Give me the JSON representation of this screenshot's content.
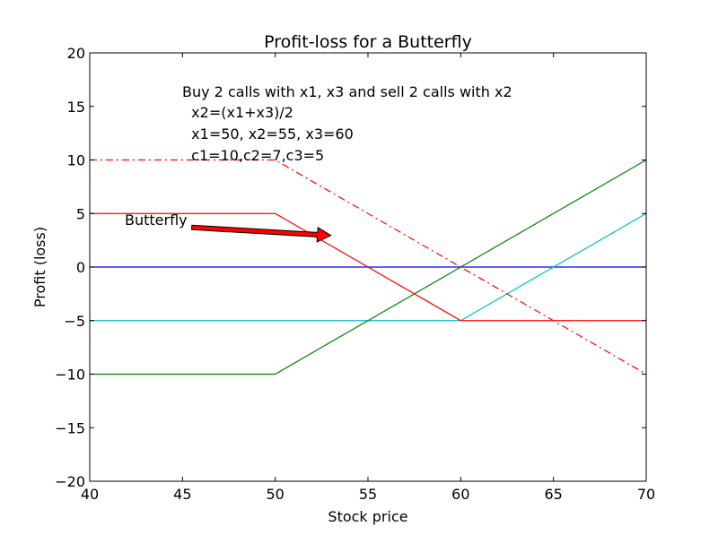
{
  "chart_data": {
    "type": "line",
    "title": "Profit-loss for a Butterfly",
    "xlabel": "Stock price",
    "ylabel": "Profit (loss)",
    "xlim": [
      40,
      70
    ],
    "ylim": [
      -20,
      20
    ],
    "xticks": [
      40,
      45,
      50,
      55,
      60,
      65,
      70
    ],
    "yticks": [
      -20,
      -15,
      -10,
      -5,
      0,
      5,
      10,
      15,
      20
    ],
    "grid": false,
    "series": [
      {
        "color": "#0000ff",
        "dash": "solid",
        "x": [
          40,
          70
        ],
        "y": [
          0,
          0
        ]
      },
      {
        "color": "#00bfbf",
        "dash": "solid",
        "x": [
          40,
          60,
          70
        ],
        "y": [
          -5,
          -5,
          5
        ]
      },
      {
        "color": "#008000",
        "dash": "solid",
        "x": [
          40,
          50,
          70
        ],
        "y": [
          -10,
          -10,
          10
        ]
      },
      {
        "color": "#ff0000",
        "dash": "dashdot",
        "x": [
          40,
          50,
          70
        ],
        "y": [
          10,
          10,
          -10
        ]
      },
      {
        "color": "#ff0000",
        "dash": "solid",
        "x": [
          40,
          50,
          60,
          70
        ],
        "y": [
          5,
          5,
          -5,
          -5
        ]
      }
    ],
    "annotations": {
      "text_lines": [
        "Buy 2 calls with x1, x3 and sell 2 calls with x2",
        "  x2=(x1+x3)/2",
        "  x1=50, x2=55, x3=60",
        "  c1=10,c2=7,c3=5"
      ],
      "arrow_label": "Butterfly",
      "arrow_color": "#ff0000"
    }
  }
}
